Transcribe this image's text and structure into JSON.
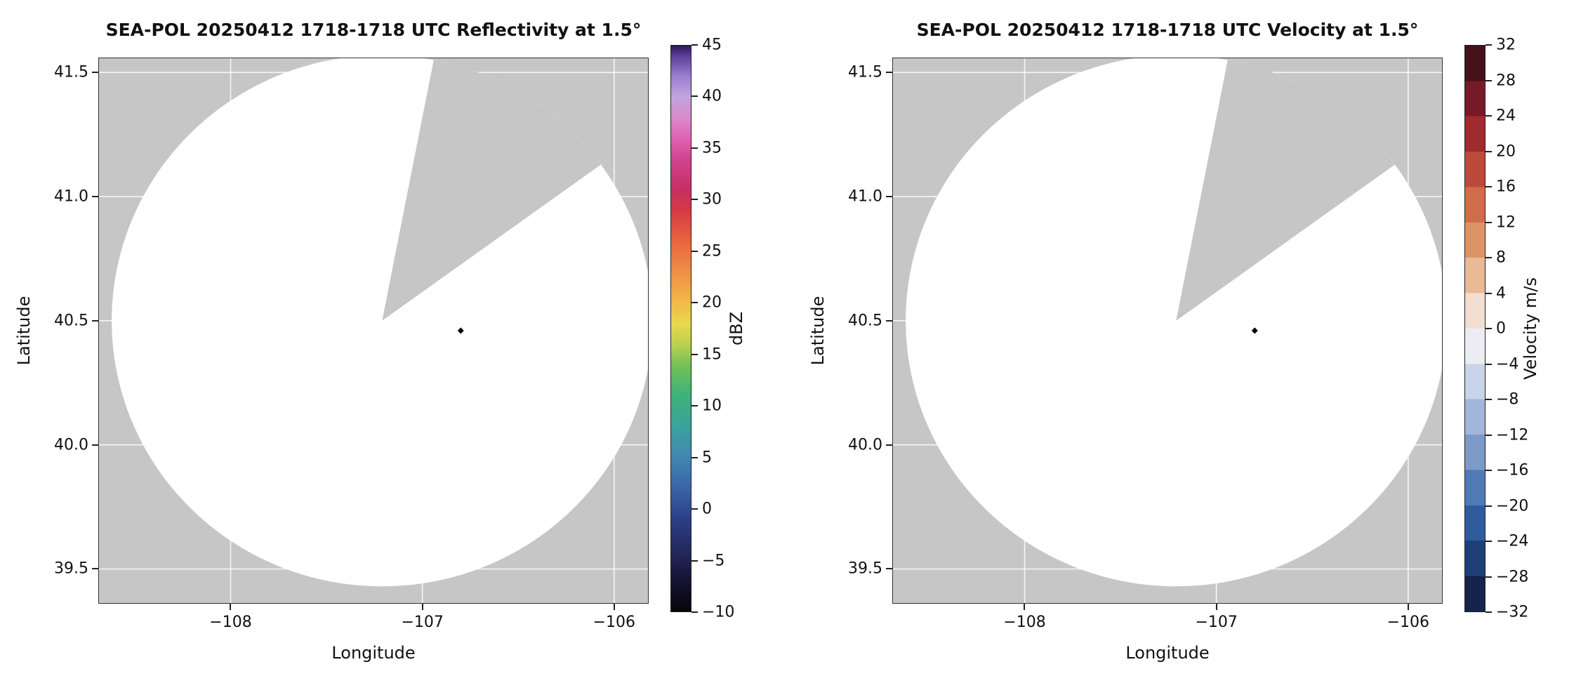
{
  "chart_data": [
    {
      "type": "heatmap",
      "title": "SEA-POL 20250412 1718-1718 UTC Reflectivity at 1.5°",
      "xlabel": "Longitude",
      "ylabel": "Latitude",
      "xlim": [
        -108.69,
        -105.82
      ],
      "ylim": [
        39.36,
        41.56
      ],
      "x_ticks": [
        -108,
        -107,
        -106
      ],
      "x_tick_labels": [
        "−108",
        "−107",
        "−106"
      ],
      "y_ticks": [
        39.5,
        40.0,
        40.5,
        41.0,
        41.5
      ],
      "y_tick_labels": [
        "39.5",
        "40.0",
        "40.5",
        "41.0",
        "41.5"
      ],
      "grid": true,
      "radar": {
        "center_lon": -107.21,
        "center_lat": 40.5,
        "radius_lon_deg": 1.41,
        "radius_lat_deg": 1.07,
        "missing_sector_azimuth_deg": [
          11,
          54
        ],
        "echo_points": [
          {
            "lon": -106.8,
            "lat": 40.46,
            "color": "#000000"
          }
        ],
        "background_color": "#c6c6c6",
        "scan_color": "#ffffff",
        "grid_color": "#ffffff"
      },
      "colorbar": {
        "label": "dBZ",
        "vmin": -10,
        "vmax": 45,
        "style": "continuous",
        "ticks": [
          45,
          40,
          35,
          30,
          25,
          20,
          15,
          10,
          5,
          0,
          -5,
          -10
        ],
        "tick_labels": [
          "45",
          "40",
          "35",
          "30",
          "25",
          "20",
          "15",
          "10",
          "5",
          "0",
          "−5",
          "−10"
        ],
        "stops": [
          {
            "v": -10,
            "c": "#070608"
          },
          {
            "v": -7,
            "c": "#161233"
          },
          {
            "v": -4,
            "c": "#232a5e"
          },
          {
            "v": -1,
            "c": "#2c3f85"
          },
          {
            "v": 2,
            "c": "#3a64a8"
          },
          {
            "v": 5,
            "c": "#4187b1"
          },
          {
            "v": 8,
            "c": "#3aa39c"
          },
          {
            "v": 11,
            "c": "#3db279"
          },
          {
            "v": 14,
            "c": "#76c155"
          },
          {
            "v": 16,
            "c": "#bcd24f"
          },
          {
            "v": 18,
            "c": "#e9d84d"
          },
          {
            "v": 20,
            "c": "#f2b94a"
          },
          {
            "v": 23,
            "c": "#ef8f46"
          },
          {
            "v": 26,
            "c": "#e96440"
          },
          {
            "v": 29,
            "c": "#d43a44"
          },
          {
            "v": 31,
            "c": "#c62f63"
          },
          {
            "v": 34,
            "c": "#d04490"
          },
          {
            "v": 36,
            "c": "#de64b2"
          },
          {
            "v": 38,
            "c": "#d98aca"
          },
          {
            "v": 40,
            "c": "#c2a4de"
          },
          {
            "v": 42,
            "c": "#9b7fd0"
          },
          {
            "v": 44,
            "c": "#5b3f99"
          },
          {
            "v": 45,
            "c": "#2c1a55"
          }
        ]
      }
    },
    {
      "type": "heatmap",
      "title": "SEA-POL 20250412 1718-1718 UTC Velocity at 1.5°",
      "xlabel": "Longitude",
      "ylabel": "Latitude",
      "xlim": [
        -108.69,
        -105.82
      ],
      "ylim": [
        39.36,
        41.56
      ],
      "x_ticks": [
        -108,
        -107,
        -106
      ],
      "x_tick_labels": [
        "−108",
        "−107",
        "−106"
      ],
      "y_ticks": [
        39.5,
        40.0,
        40.5,
        41.0,
        41.5
      ],
      "y_tick_labels": [
        "39.5",
        "40.0",
        "40.5",
        "41.0",
        "41.5"
      ],
      "grid": true,
      "radar": {
        "center_lon": -107.21,
        "center_lat": 40.5,
        "radius_lon_deg": 1.41,
        "radius_lat_deg": 1.07,
        "missing_sector_azimuth_deg": [
          11,
          54
        ],
        "echo_points": [
          {
            "lon": -106.8,
            "lat": 40.46,
            "color": "#000000"
          }
        ],
        "background_color": "#c6c6c6",
        "scan_color": "#ffffff",
        "grid_color": "#ffffff"
      },
      "colorbar": {
        "label": "Velocity m/s",
        "vmin": -32,
        "vmax": 32,
        "style": "discrete",
        "ticks": [
          32,
          28,
          24,
          20,
          16,
          12,
          8,
          4,
          0,
          -4,
          -8,
          -12,
          -16,
          -20,
          -24,
          -28,
          -32
        ],
        "tick_labels": [
          "32",
          "28",
          "24",
          "20",
          "16",
          "12",
          "8",
          "4",
          "0",
          "−4",
          "−8",
          "−12",
          "−16",
          "−20",
          "−24",
          "−28",
          "−32"
        ],
        "segments": [
          {
            "from": 28,
            "to": 32,
            "c": "#451019"
          },
          {
            "from": 24,
            "to": 28,
            "c": "#761a28"
          },
          {
            "from": 20,
            "to": 24,
            "c": "#9f2b2f"
          },
          {
            "from": 16,
            "to": 20,
            "c": "#bc4a3a"
          },
          {
            "from": 12,
            "to": 16,
            "c": "#cf6d49"
          },
          {
            "from": 8,
            "to": 12,
            "c": "#dd9465"
          },
          {
            "from": 4,
            "to": 8,
            "c": "#eab995"
          },
          {
            "from": 0,
            "to": 4,
            "c": "#f3ded2"
          },
          {
            "from": -4,
            "to": 0,
            "c": "#ebedf2"
          },
          {
            "from": -8,
            "to": -4,
            "c": "#c9d4e8"
          },
          {
            "from": -12,
            "to": -8,
            "c": "#a3b6d9"
          },
          {
            "from": -16,
            "to": -12,
            "c": "#7c9ac8"
          },
          {
            "from": -20,
            "to": -16,
            "c": "#4f7ab6"
          },
          {
            "from": -24,
            "to": -20,
            "c": "#2f5b9e"
          },
          {
            "from": -28,
            "to": -24,
            "c": "#1e3f77"
          },
          {
            "from": -32,
            "to": -28,
            "c": "#14244c"
          }
        ]
      }
    }
  ]
}
